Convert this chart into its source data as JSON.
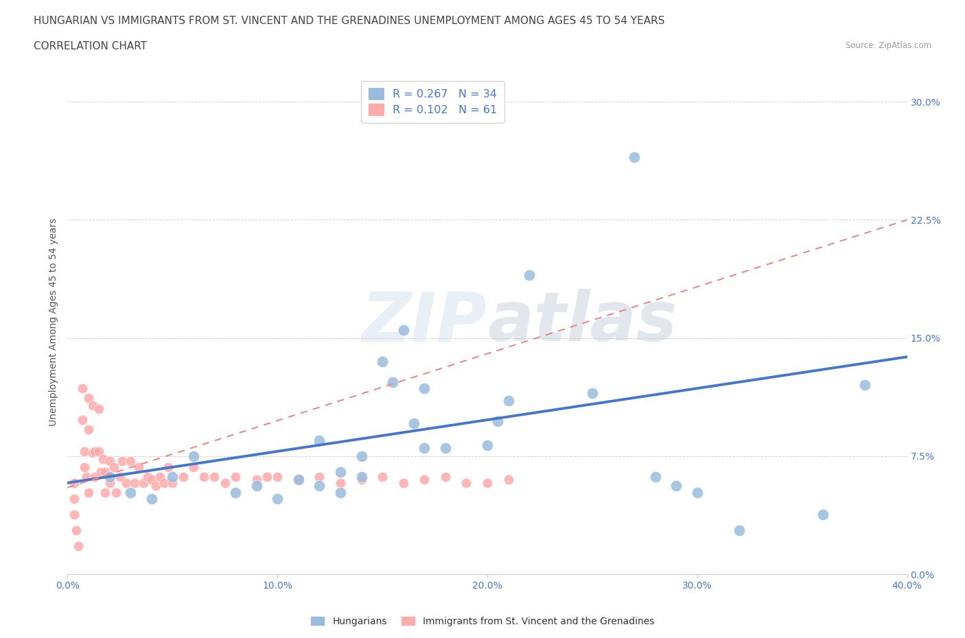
{
  "title_line1": "HUNGARIAN VS IMMIGRANTS FROM ST. VINCENT AND THE GRENADINES UNEMPLOYMENT AMONG AGES 45 TO 54 YEARS",
  "title_line2": "CORRELATION CHART",
  "source_text": "Source: ZipAtlas.com",
  "ylabel": "Unemployment Among Ages 45 to 54 years",
  "xlim": [
    0.0,
    0.4
  ],
  "ylim": [
    0.0,
    0.32
  ],
  "xticks": [
    0.0,
    0.1,
    0.2,
    0.3,
    0.4
  ],
  "xticklabels": [
    "0.0%",
    "10.0%",
    "20.0%",
    "30.0%",
    "40.0%"
  ],
  "yticks": [
    0.0,
    0.075,
    0.15,
    0.225,
    0.3
  ],
  "yticklabels": [
    "0.0%",
    "7.5%",
    "15.0%",
    "22.5%",
    "30.0%"
  ],
  "blue_color": "#99BBDD",
  "pink_color": "#FFAAAA",
  "blue_line_color": "#4477CC",
  "pink_line_color": "#EE8888",
  "watermark_zip": "ZIP",
  "watermark_atlas": "atlas",
  "legend_R1": "R = 0.267",
  "legend_N1": "N = 34",
  "legend_R2": "R = 0.102",
  "legend_N2": "N = 61",
  "blue_scatter_x": [
    0.02,
    0.03,
    0.04,
    0.05,
    0.06,
    0.08,
    0.09,
    0.1,
    0.11,
    0.12,
    0.12,
    0.13,
    0.13,
    0.14,
    0.14,
    0.15,
    0.155,
    0.16,
    0.165,
    0.17,
    0.17,
    0.18,
    0.2,
    0.205,
    0.21,
    0.22,
    0.25,
    0.27,
    0.28,
    0.29,
    0.3,
    0.32,
    0.36,
    0.38
  ],
  "blue_scatter_y": [
    0.062,
    0.052,
    0.048,
    0.062,
    0.075,
    0.052,
    0.056,
    0.048,
    0.06,
    0.085,
    0.056,
    0.065,
    0.052,
    0.075,
    0.062,
    0.135,
    0.122,
    0.155,
    0.096,
    0.08,
    0.118,
    0.08,
    0.082,
    0.097,
    0.11,
    0.19,
    0.115,
    0.265,
    0.062,
    0.056,
    0.052,
    0.028,
    0.038,
    0.12
  ],
  "pink_scatter_x": [
    0.003,
    0.003,
    0.003,
    0.004,
    0.005,
    0.007,
    0.007,
    0.008,
    0.008,
    0.009,
    0.01,
    0.01,
    0.01,
    0.012,
    0.012,
    0.013,
    0.013,
    0.015,
    0.015,
    0.016,
    0.017,
    0.018,
    0.018,
    0.02,
    0.02,
    0.022,
    0.023,
    0.025,
    0.026,
    0.028,
    0.03,
    0.032,
    0.034,
    0.036,
    0.038,
    0.04,
    0.042,
    0.044,
    0.046,
    0.048,
    0.05,
    0.055,
    0.06,
    0.065,
    0.07,
    0.075,
    0.08,
    0.09,
    0.095,
    0.1,
    0.11,
    0.12,
    0.13,
    0.14,
    0.15,
    0.16,
    0.17,
    0.18,
    0.19,
    0.2,
    0.21
  ],
  "pink_scatter_y": [
    0.058,
    0.048,
    0.038,
    0.028,
    0.018,
    0.118,
    0.098,
    0.078,
    0.068,
    0.062,
    0.052,
    0.112,
    0.092,
    0.077,
    0.107,
    0.078,
    0.062,
    0.105,
    0.078,
    0.065,
    0.073,
    0.065,
    0.052,
    0.072,
    0.058,
    0.068,
    0.052,
    0.062,
    0.072,
    0.058,
    0.072,
    0.058,
    0.068,
    0.058,
    0.062,
    0.06,
    0.056,
    0.062,
    0.058,
    0.068,
    0.058,
    0.062,
    0.068,
    0.062,
    0.062,
    0.058,
    0.062,
    0.06,
    0.062,
    0.062,
    0.06,
    0.062,
    0.058,
    0.06,
    0.062,
    0.058,
    0.06,
    0.062,
    0.058,
    0.058,
    0.06
  ],
  "blue_trend_y_start": 0.058,
  "blue_trend_y_end": 0.138,
  "pink_trend_y_start": 0.055,
  "pink_trend_y_end": 0.225,
  "grid_color": "#CCCCCC",
  "background_color": "#FFFFFF",
  "tick_color": "#4477CC",
  "title_color": "#444444",
  "title_fontsize": 11,
  "axis_tick_fontsize": 10,
  "ylabel_fontsize": 10
}
